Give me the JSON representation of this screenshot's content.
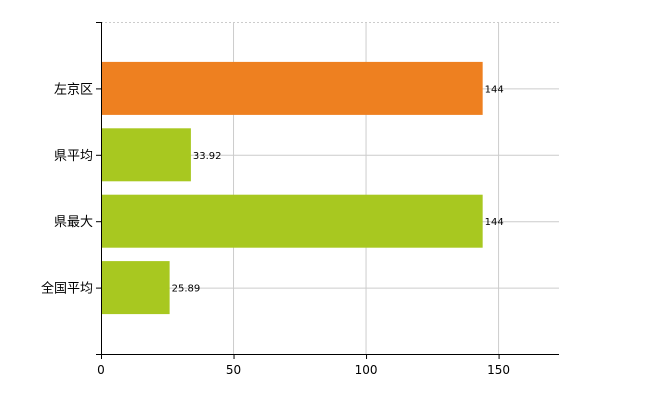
{
  "chart_data": {
    "type": "bar",
    "orientation": "horizontal",
    "categories": [
      "左京区",
      "県平均",
      "県最大",
      "全国平均"
    ],
    "values": [
      144,
      33.92,
      144,
      25.89
    ],
    "data_labels": [
      "144",
      "33.92",
      "144",
      "25.89"
    ],
    "bar_colors": [
      "#ee8020",
      "#a8c820",
      "#a8c820",
      "#a8c820"
    ],
    "xticks": [
      0,
      50,
      100,
      150
    ],
    "xtick_labels": [
      "0",
      "50",
      "100",
      "150"
    ],
    "xlim": [
      0,
      172.8
    ],
    "title": "",
    "xlabel": "",
    "ylabel": "",
    "grid": true,
    "grid_color": "#cccccc",
    "axis_color": "#000000"
  }
}
